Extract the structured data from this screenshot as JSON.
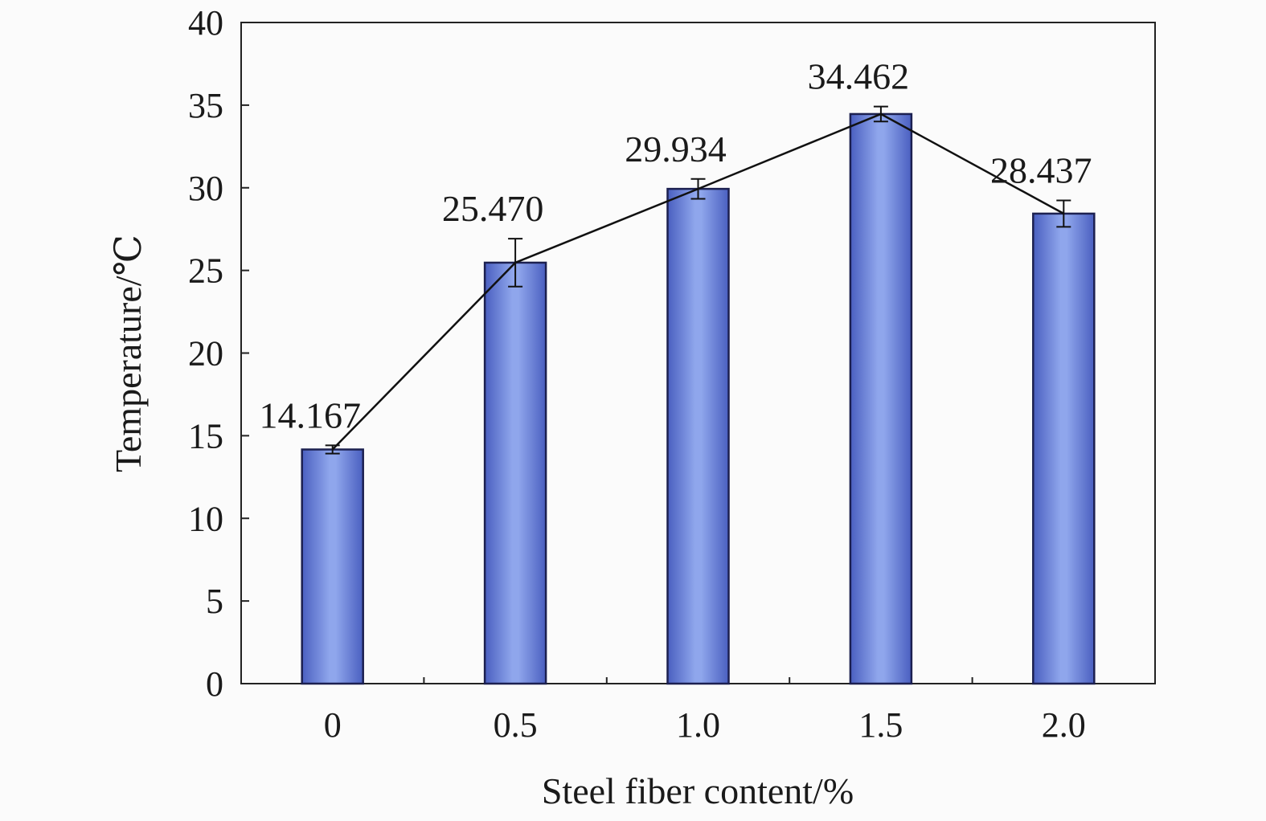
{
  "chart_data": {
    "type": "bar",
    "categories": [
      "0",
      "0.5",
      "1.0",
      "1.5",
      "2.0"
    ],
    "values": [
      14.167,
      25.47,
      29.934,
      34.462,
      28.437
    ],
    "value_labels": [
      "14.167",
      "25.470",
      "29.934",
      "34.462",
      "28.437"
    ],
    "error_bars": [
      0.25,
      1.45,
      0.6,
      0.45,
      0.8
    ],
    "overlay_line": true,
    "xlabel": "Steel fiber content/%",
    "ylabel": "Temperature/℃",
    "ylim": [
      0,
      40
    ],
    "yticks": [
      "0",
      "5",
      "10",
      "15",
      "20",
      "25",
      "30",
      "35",
      "40"
    ],
    "grid": false,
    "legend": "none",
    "colors": {
      "bar_dark": "#4a5fc0",
      "bar_light": "#8fa6ec",
      "bar_edge": "#1c2050",
      "line": "#111111",
      "axis": "#222222"
    }
  }
}
